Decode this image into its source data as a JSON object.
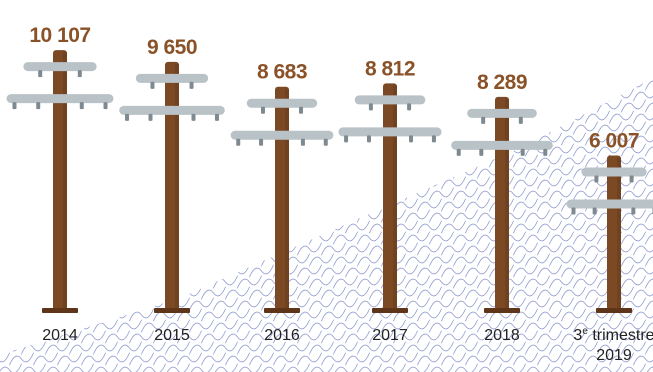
{
  "colors": {
    "pole": "#7b4a25",
    "pole_shade": "#5e3518",
    "crossarm": "#b9c2c6",
    "insulator": "#7e8a90",
    "value_text": "#8a5228",
    "wave": "#8f9bd1"
  },
  "chart_data": {
    "type": "bar",
    "style": "utility-pole pictogram",
    "categories": [
      "2014",
      "2015",
      "2016",
      "2017",
      "2018",
      "3e trimestre 2019"
    ],
    "category_lines": [
      [
        "2014"
      ],
      [
        "2015"
      ],
      [
        "2016"
      ],
      [
        "2017"
      ],
      [
        "2018"
      ],
      [
        "3e trimestre",
        "2019"
      ]
    ],
    "values": [
      10107,
      9650,
      8683,
      8812,
      8289,
      6007
    ],
    "value_labels": [
      "10 107",
      "9 650",
      "8 683",
      "8 812",
      "8 289",
      "6 007"
    ],
    "ylim": [
      0,
      10500
    ],
    "title": "",
    "xlabel": "",
    "ylabel": ""
  }
}
